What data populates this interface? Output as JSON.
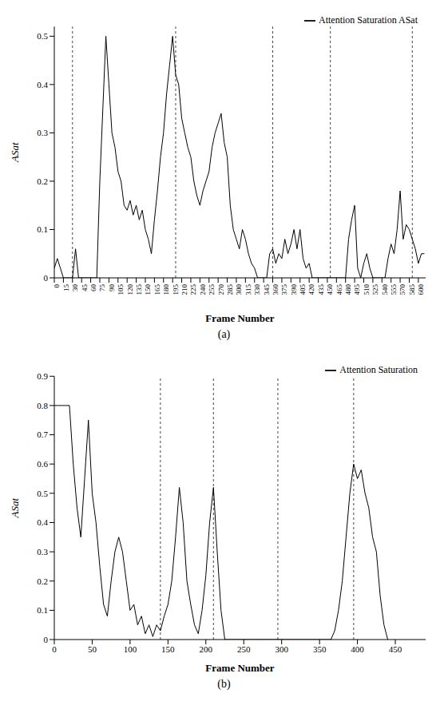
{
  "chart_data": [
    {
      "type": "line",
      "caption": "(a)",
      "x_label": "Frame Number",
      "y_label": "ASat",
      "legend": "top-right",
      "grid": false,
      "xlim": [
        0,
        612
      ],
      "ylim": [
        0,
        0.52
      ],
      "xticks": [
        0,
        15,
        30,
        45,
        60,
        75,
        90,
        105,
        120,
        135,
        150,
        165,
        180,
        195,
        210,
        225,
        240,
        255,
        270,
        285,
        300,
        315,
        330,
        345,
        360,
        375,
        390,
        405,
        420,
        435,
        450,
        465,
        480,
        495,
        510,
        525,
        540,
        555,
        570,
        585,
        600
      ],
      "yticks": [
        0,
        0.1,
        0.2,
        0.3,
        0.4,
        0.5
      ],
      "vlines": [
        30,
        200,
        360,
        455,
        590
      ],
      "x": [
        0,
        5,
        10,
        15,
        20,
        25,
        30,
        35,
        40,
        45,
        50,
        55,
        60,
        65,
        70,
        75,
        80,
        85,
        90,
        95,
        100,
        105,
        110,
        115,
        120,
        125,
        130,
        135,
        140,
        145,
        150,
        155,
        160,
        165,
        170,
        175,
        180,
        185,
        190,
        195,
        200,
        205,
        210,
        215,
        220,
        225,
        230,
        235,
        240,
        245,
        250,
        255,
        260,
        265,
        270,
        275,
        280,
        285,
        290,
        295,
        300,
        305,
        310,
        315,
        320,
        325,
        330,
        335,
        340,
        345,
        350,
        355,
        360,
        365,
        370,
        375,
        380,
        385,
        390,
        395,
        400,
        405,
        410,
        415,
        420,
        425,
        430,
        435,
        440,
        445,
        450,
        455,
        460,
        465,
        470,
        475,
        480,
        485,
        490,
        495,
        500,
        505,
        510,
        515,
        520,
        525,
        530,
        535,
        540,
        545,
        550,
        555,
        560,
        565,
        570,
        575,
        580,
        585,
        590,
        595,
        600,
        605,
        610
      ],
      "series": [
        {
          "name": "Attention Saturation ASat",
          "color": "#000000",
          "values": [
            0.02,
            0.04,
            0.02,
            0,
            0,
            0,
            0,
            0.06,
            0,
            0,
            0,
            0,
            0,
            0,
            0,
            0.2,
            0.35,
            0.5,
            0.4,
            0.3,
            0.27,
            0.22,
            0.2,
            0.15,
            0.14,
            0.16,
            0.13,
            0.15,
            0.12,
            0.14,
            0.1,
            0.08,
            0.05,
            0.12,
            0.18,
            0.25,
            0.3,
            0.38,
            0.44,
            0.5,
            0.42,
            0.4,
            0.33,
            0.3,
            0.27,
            0.25,
            0.2,
            0.17,
            0.15,
            0.18,
            0.2,
            0.22,
            0.27,
            0.3,
            0.32,
            0.34,
            0.28,
            0.25,
            0.15,
            0.1,
            0.08,
            0.06,
            0.1,
            0.08,
            0.05,
            0.03,
            0.02,
            0,
            0,
            0,
            0,
            0.05,
            0.06,
            0.03,
            0.05,
            0.04,
            0.08,
            0.05,
            0.07,
            0.1,
            0.06,
            0.1,
            0.04,
            0.02,
            0.03,
            0,
            0,
            0,
            0,
            0,
            0,
            0,
            0,
            0,
            0,
            0,
            0,
            0.08,
            0.12,
            0.15,
            0.02,
            0,
            0.03,
            0.05,
            0.02,
            0,
            0,
            0,
            0,
            0,
            0.04,
            0.07,
            0.05,
            0.1,
            0.18,
            0.08,
            0.11,
            0.1,
            0.08,
            0.06,
            0.03,
            0.05,
            0.05
          ]
        }
      ]
    },
    {
      "type": "line",
      "caption": "(b)",
      "x_label": "Frame Number",
      "y_label": "ASat",
      "legend": "top-right",
      "grid": false,
      "xlim": [
        0,
        490
      ],
      "ylim": [
        0,
        0.9
      ],
      "xticks": [
        0,
        50,
        100,
        150,
        200,
        250,
        300,
        350,
        400,
        450
      ],
      "yticks": [
        0,
        0.1,
        0.2,
        0.3,
        0.4,
        0.5,
        0.6,
        0.7,
        0.8,
        0.9
      ],
      "vlines": [
        140,
        210,
        295,
        395
      ],
      "x": [
        0,
        5,
        10,
        15,
        20,
        25,
        30,
        35,
        40,
        45,
        50,
        55,
        60,
        65,
        70,
        75,
        80,
        85,
        90,
        95,
        100,
        105,
        110,
        115,
        120,
        125,
        130,
        135,
        140,
        145,
        150,
        155,
        160,
        165,
        170,
        175,
        180,
        185,
        190,
        195,
        200,
        205,
        210,
        215,
        220,
        225,
        230,
        235,
        240,
        245,
        250,
        255,
        260,
        265,
        270,
        275,
        280,
        285,
        290,
        295,
        300,
        305,
        310,
        315,
        320,
        325,
        330,
        335,
        340,
        345,
        350,
        355,
        360,
        365,
        370,
        375,
        380,
        385,
        390,
        395,
        400,
        405,
        410,
        415,
        420,
        425,
        430,
        435,
        440
      ],
      "series": [
        {
          "name": "Attention Saturation",
          "color": "#000000",
          "values": [
            0.8,
            0.8,
            0.8,
            0.8,
            0.8,
            0.6,
            0.45,
            0.35,
            0.55,
            0.75,
            0.5,
            0.4,
            0.25,
            0.12,
            0.08,
            0.2,
            0.3,
            0.35,
            0.3,
            0.2,
            0.1,
            0.12,
            0.05,
            0.08,
            0.02,
            0.05,
            0.01,
            0.05,
            0.03,
            0.08,
            0.12,
            0.2,
            0.35,
            0.52,
            0.4,
            0.2,
            0.12,
            0.05,
            0.02,
            0.1,
            0.22,
            0.4,
            0.52,
            0.3,
            0.1,
            0,
            0,
            0,
            0,
            0,
            0,
            0,
            0,
            0,
            0,
            0,
            0,
            0,
            0,
            0,
            0,
            0,
            0,
            0,
            0,
            0,
            0,
            0,
            0,
            0,
            0,
            0,
            0,
            0,
            0.03,
            0.1,
            0.2,
            0.35,
            0.5,
            0.6,
            0.55,
            0.58,
            0.5,
            0.45,
            0.35,
            0.3,
            0.15,
            0.05,
            0
          ]
        }
      ]
    }
  ]
}
